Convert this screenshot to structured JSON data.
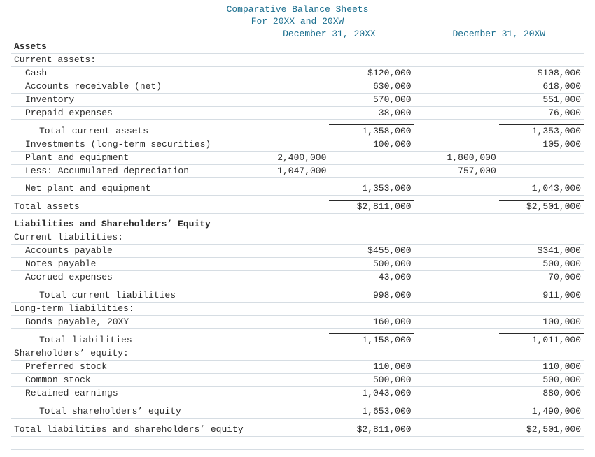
{
  "colors": {
    "accent": "#1a6e8e",
    "text": "#2a2a2a",
    "row_line": "#d6dde3",
    "background": "#ffffff"
  },
  "typography": {
    "family": "Courier New, monospace",
    "size_pt": 10
  },
  "title": {
    "line1": "Comparative Balance Sheets",
    "line2": "For 20XX and 20XW"
  },
  "columns": {
    "y1_header": "December 31, 20XX",
    "y2_header": "December 31, 20XW"
  },
  "sections": {
    "assets_hdr": "Assets",
    "current_assets_hdr": "Current assets:",
    "liab_eq_hdr": "Liabilities and Shareholders’ Equity",
    "current_liab_hdr": "Current liabilities:",
    "long_term_liab_hdr": "Long-term liabilities:",
    "shareholders_eq_hdr": "Shareholders’ equity:"
  },
  "rows": {
    "cash": {
      "label": "Cash",
      "y1": "$120,000",
      "y2": "$108,000"
    },
    "ar": {
      "label": "Accounts receivable (net)",
      "y1": "630,000",
      "y2": "618,000"
    },
    "inventory": {
      "label": "Inventory",
      "y1": "570,000",
      "y2": "551,000"
    },
    "prepaid": {
      "label": "Prepaid expenses",
      "y1": "38,000",
      "y2": "76,000"
    },
    "tot_cur_assets": {
      "label": "Total current assets",
      "y1": "1,358,000",
      "y2": "1,353,000"
    },
    "investments": {
      "label": "Investments (long-term securities)",
      "y1": "100,000",
      "y2": "105,000"
    },
    "plant_eq": {
      "label": "Plant and equipment",
      "y1a": "2,400,000",
      "y2a": "1,800,000"
    },
    "acc_dep": {
      "label": "Less: Accumulated depreciation",
      "y1a": "1,047,000",
      "y2a": "757,000"
    },
    "net_plant": {
      "label": "Net plant and equipment",
      "y1": "1,353,000",
      "y2": "1,043,000"
    },
    "total_assets": {
      "label": "Total assets",
      "y1": "$2,811,000",
      "y2": "$2,501,000"
    },
    "ap": {
      "label": "Accounts payable",
      "y1": "$455,000",
      "y2": "$341,000"
    },
    "np": {
      "label": "Notes payable",
      "y1": "500,000",
      "y2": "500,000"
    },
    "accrued": {
      "label": "Accrued expenses",
      "y1": "43,000",
      "y2": "70,000"
    },
    "tot_cur_liab": {
      "label": "Total current liabilities",
      "y1": "998,000",
      "y2": "911,000"
    },
    "bonds": {
      "label": "Bonds payable, 20XY",
      "y1": "160,000",
      "y2": "100,000"
    },
    "tot_liab": {
      "label": "Total liabilities",
      "y1": "1,158,000",
      "y2": "1,011,000"
    },
    "pref_stock": {
      "label": "Preferred stock",
      "y1": "110,000",
      "y2": "110,000"
    },
    "common_stock": {
      "label": "Common stock",
      "y1": "500,000",
      "y2": "500,000"
    },
    "ret_earn": {
      "label": "Retained earnings",
      "y1": "1,043,000",
      "y2": "880,000"
    },
    "tot_sh_eq": {
      "label": "Total shareholders’ equity",
      "y1": "1,653,000",
      "y2": "1,490,000"
    },
    "tot_liab_eq": {
      "label": "Total liabilities and shareholders’ equity",
      "y1": "$2,811,000",
      "y2": "$2,501,000"
    }
  }
}
